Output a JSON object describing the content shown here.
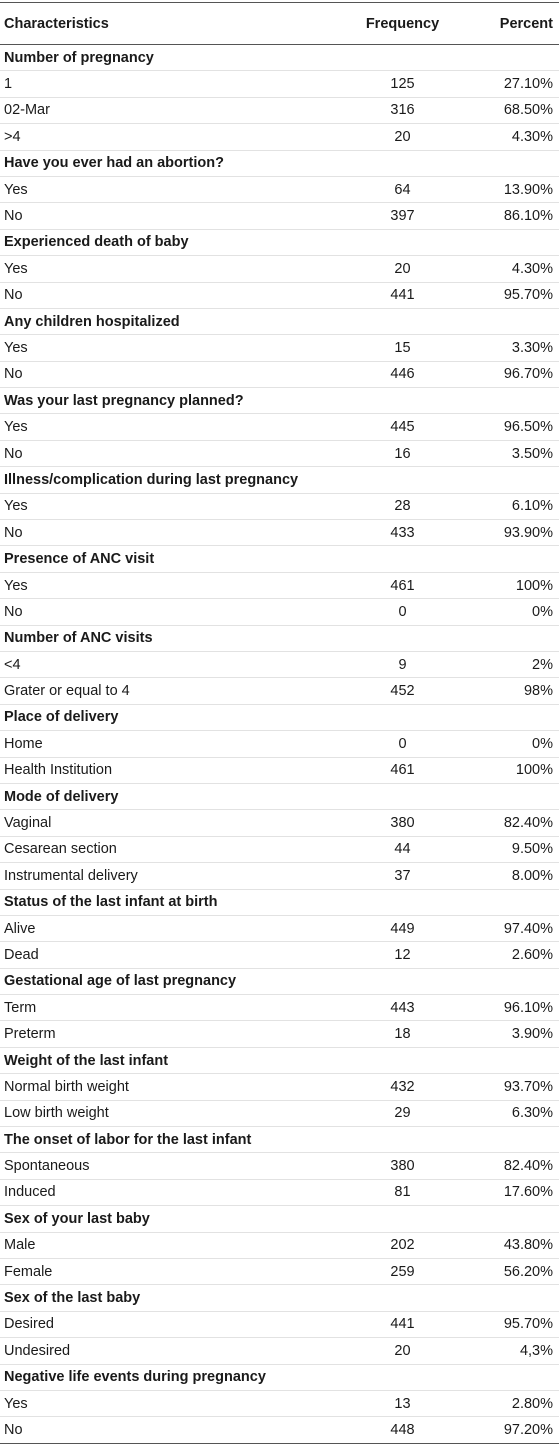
{
  "header": {
    "characteristics": "Characteristics",
    "frequency": "Frequency",
    "percent": "Percent"
  },
  "groups": [
    {
      "title": "Number of pregnancy",
      "rows": [
        {
          "label": "1",
          "frequency": "125",
          "percent": "27.10%"
        },
        {
          "label": "02-Mar",
          "frequency": "316",
          "percent": "68.50%"
        },
        {
          "label": ">4",
          "frequency": "20",
          "percent": "4.30%"
        }
      ]
    },
    {
      "title": "Have you ever had an abortion?",
      "rows": [
        {
          "label": "Yes",
          "frequency": "64",
          "percent": "13.90%"
        },
        {
          "label": "No",
          "frequency": "397",
          "percent": "86.10%"
        }
      ]
    },
    {
      "title": "Experienced death of baby",
      "rows": [
        {
          "label": "Yes",
          "frequency": "20",
          "percent": "4.30%"
        },
        {
          "label": "No",
          "frequency": "441",
          "percent": "95.70%"
        }
      ]
    },
    {
      "title": "Any children hospitalized",
      "rows": [
        {
          "label": "Yes",
          "frequency": "15",
          "percent": "3.30%"
        },
        {
          "label": "No",
          "frequency": "446",
          "percent": "96.70%"
        }
      ]
    },
    {
      "title": "Was your last pregnancy planned?",
      "rows": [
        {
          "label": "Yes",
          "frequency": "445",
          "percent": "96.50%"
        },
        {
          "label": "No",
          "frequency": "16",
          "percent": "3.50%"
        }
      ]
    },
    {
      "title": "Illness/complication during last pregnancy",
      "rows": [
        {
          "label": "Yes",
          "frequency": "28",
          "percent": "6.10%"
        },
        {
          "label": "No",
          "frequency": "433",
          "percent": "93.90%"
        }
      ]
    },
    {
      "title": "Presence of ANC visit",
      "rows": [
        {
          "label": "Yes",
          "frequency": "461",
          "percent": "100%"
        },
        {
          "label": "No",
          "frequency": "0",
          "percent": "0%"
        }
      ]
    },
    {
      "title": "Number of ANC visits",
      "rows": [
        {
          "label": "<4",
          "frequency": "9",
          "percent": "2%"
        },
        {
          "label": "Grater or equal to 4",
          "frequency": "452",
          "percent": "98%"
        }
      ]
    },
    {
      "title": "Place of delivery",
      "rows": [
        {
          "label": "Home",
          "frequency": "0",
          "percent": "0%"
        },
        {
          "label": "Health Institution",
          "frequency": "461",
          "percent": "100%"
        }
      ]
    },
    {
      "title": "Mode of delivery",
      "rows": [
        {
          "label": "Vaginal",
          "frequency": "380",
          "percent": "82.40%"
        },
        {
          "label": "Cesarean section",
          "frequency": "44",
          "percent": "9.50%"
        },
        {
          "label": "Instrumental delivery",
          "frequency": "37",
          "percent": "8.00%"
        }
      ]
    },
    {
      "title": "Status of the last infant at birth",
      "rows": [
        {
          "label": "Alive",
          "frequency": "449",
          "percent": "97.40%"
        },
        {
          "label": "Dead",
          "frequency": "12",
          "percent": "2.60%"
        }
      ]
    },
    {
      "title": "Gestational age of last pregnancy",
      "rows": [
        {
          "label": "Term",
          "frequency": "443",
          "percent": "96.10%"
        },
        {
          "label": "Preterm",
          "frequency": "18",
          "percent": "3.90%"
        }
      ]
    },
    {
      "title": "Weight of the last infant",
      "rows": [
        {
          "label": "Normal birth weight",
          "frequency": "432",
          "percent": "93.70%"
        },
        {
          "label": "Low birth weight",
          "frequency": "29",
          "percent": "6.30%"
        }
      ]
    },
    {
      "title": "The onset of labor for the last infant",
      "rows": [
        {
          "label": "Spontaneous",
          "frequency": "380",
          "percent": "82.40%"
        },
        {
          "label": "Induced",
          "frequency": "81",
          "percent": "17.60%"
        }
      ]
    },
    {
      "title": "Sex of your last baby",
      "rows": [
        {
          "label": "Male",
          "frequency": "202",
          "percent": "43.80%"
        },
        {
          "label": "Female",
          "frequency": "259",
          "percent": "56.20%"
        }
      ]
    },
    {
      "title": "Sex of the last baby",
      "rows": [
        {
          "label": "Desired",
          "frequency": "441",
          "percent": "95.70%"
        },
        {
          "label": "Undesired",
          "frequency": "20",
          "percent": "4,3%"
        }
      ]
    },
    {
      "title": "Negative life events during pregnancy",
      "rows": [
        {
          "label": "Yes",
          "frequency": "13",
          "percent": "2.80%"
        },
        {
          "label": "No",
          "frequency": "448",
          "percent": "97.20%"
        }
      ]
    }
  ]
}
